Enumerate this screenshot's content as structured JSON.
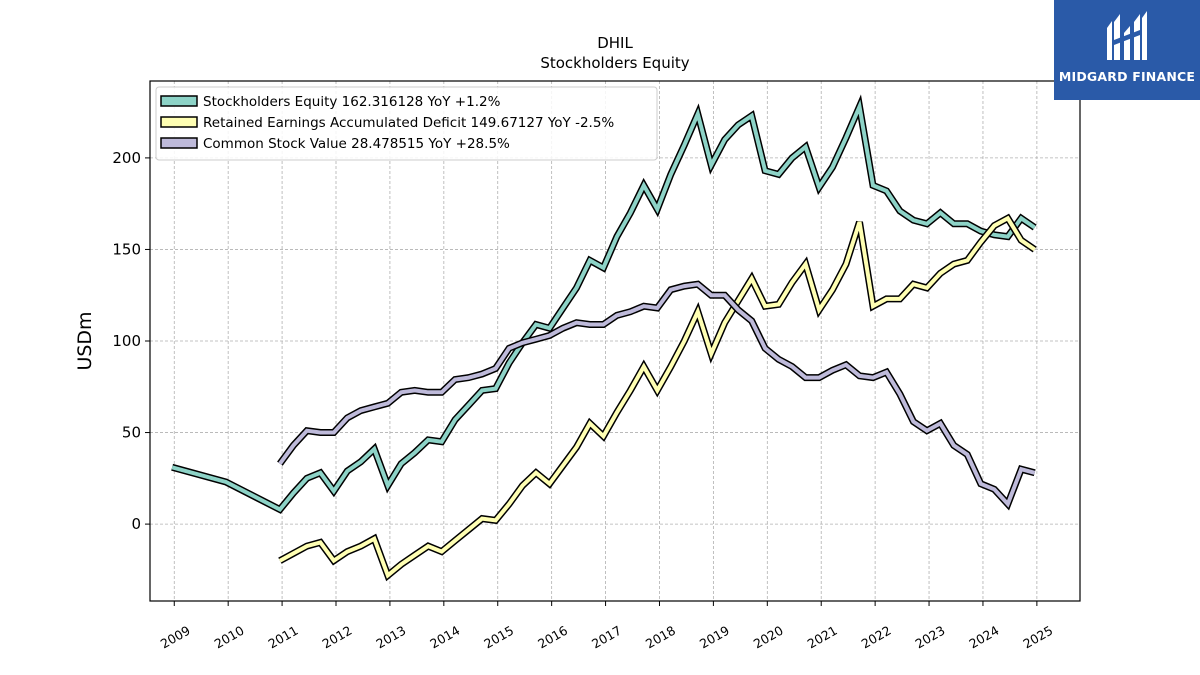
{
  "brand": {
    "logo_text": "MIDGARD FINANCE",
    "color": "#2a5aa8"
  },
  "chart_data": {
    "type": "line",
    "title": "DHIL",
    "subtitle": "Stockholders  Equity",
    "ylabel": "USDm",
    "xlabel": "",
    "xlim": [
      2008.55,
      2025.8
    ],
    "ylim": [
      -42,
      242
    ],
    "yticks": [
      0,
      50,
      100,
      150,
      200
    ],
    "xticks": [
      2009,
      2010,
      2011,
      2012,
      2013,
      2014,
      2015,
      2016,
      2017,
      2018,
      2019,
      2020,
      2021,
      2022,
      2023,
      2024,
      2025
    ],
    "grid": true,
    "legend_position": "upper-left",
    "series": [
      {
        "name": "Stockholders Equity  162.316128 YoY +1.2%",
        "color": "#8dd3c7",
        "points": [
          [
            2008.96,
            31
          ],
          [
            2009.96,
            23
          ],
          [
            2010.96,
            8
          ],
          [
            2011.21,
            17
          ],
          [
            2011.46,
            25
          ],
          [
            2011.71,
            28
          ],
          [
            2011.96,
            18
          ],
          [
            2012.21,
            29
          ],
          [
            2012.46,
            34
          ],
          [
            2012.71,
            41
          ],
          [
            2012.96,
            21
          ],
          [
            2013.21,
            33
          ],
          [
            2013.46,
            39
          ],
          [
            2013.71,
            46
          ],
          [
            2013.96,
            45
          ],
          [
            2014.21,
            57
          ],
          [
            2014.46,
            65
          ],
          [
            2014.71,
            73
          ],
          [
            2014.96,
            74
          ],
          [
            2015.21,
            88
          ],
          [
            2015.46,
            99
          ],
          [
            2015.71,
            109
          ],
          [
            2015.96,
            107
          ],
          [
            2016.21,
            118
          ],
          [
            2016.46,
            129
          ],
          [
            2016.71,
            144
          ],
          [
            2016.96,
            140
          ],
          [
            2017.21,
            157
          ],
          [
            2017.46,
            170
          ],
          [
            2017.71,
            185
          ],
          [
            2017.96,
            172
          ],
          [
            2018.21,
            191
          ],
          [
            2018.46,
            207
          ],
          [
            2018.71,
            224
          ],
          [
            2018.96,
            196
          ],
          [
            2019.21,
            210
          ],
          [
            2019.46,
            218
          ],
          [
            2019.71,
            223
          ],
          [
            2019.96,
            193
          ],
          [
            2020.21,
            191
          ],
          [
            2020.46,
            200
          ],
          [
            2020.71,
            206
          ],
          [
            2020.96,
            184
          ],
          [
            2021.21,
            195
          ],
          [
            2021.46,
            211
          ],
          [
            2021.71,
            228
          ],
          [
            2021.96,
            185
          ],
          [
            2022.21,
            182
          ],
          [
            2022.46,
            171
          ],
          [
            2022.71,
            166
          ],
          [
            2022.96,
            164
          ],
          [
            2023.21,
            170
          ],
          [
            2023.46,
            164
          ],
          [
            2023.71,
            164
          ],
          [
            2023.96,
            160
          ],
          [
            2024.21,
            158
          ],
          [
            2024.46,
            157
          ],
          [
            2024.71,
            167
          ],
          [
            2024.96,
            162
          ]
        ]
      },
      {
        "name": "Retained Earnings Accumulated Deficit  149.67127 YoY -2.5%",
        "color": "#ffffb3",
        "points": [
          [
            2010.96,
            -20
          ],
          [
            2011.21,
            -16
          ],
          [
            2011.46,
            -12
          ],
          [
            2011.71,
            -10
          ],
          [
            2011.96,
            -20
          ],
          [
            2012.21,
            -15
          ],
          [
            2012.46,
            -12
          ],
          [
            2012.71,
            -8
          ],
          [
            2012.96,
            -28
          ],
          [
            2013.21,
            -22
          ],
          [
            2013.46,
            -17
          ],
          [
            2013.71,
            -12
          ],
          [
            2013.96,
            -15
          ],
          [
            2014.21,
            -9
          ],
          [
            2014.46,
            -3
          ],
          [
            2014.71,
            3
          ],
          [
            2014.96,
            2
          ],
          [
            2015.21,
            11
          ],
          [
            2015.46,
            21
          ],
          [
            2015.71,
            28
          ],
          [
            2015.96,
            22
          ],
          [
            2016.21,
            32
          ],
          [
            2016.46,
            42
          ],
          [
            2016.71,
            55
          ],
          [
            2016.96,
            48
          ],
          [
            2017.21,
            61
          ],
          [
            2017.46,
            73
          ],
          [
            2017.71,
            86
          ],
          [
            2017.96,
            73
          ],
          [
            2018.21,
            86
          ],
          [
            2018.46,
            100
          ],
          [
            2018.71,
            116
          ],
          [
            2018.96,
            93
          ],
          [
            2019.21,
            110
          ],
          [
            2019.46,
            122
          ],
          [
            2019.71,
            134
          ],
          [
            2019.96,
            119
          ],
          [
            2020.21,
            120
          ],
          [
            2020.46,
            132
          ],
          [
            2020.71,
            142
          ],
          [
            2020.96,
            117
          ],
          [
            2021.21,
            128
          ],
          [
            2021.46,
            142
          ],
          [
            2021.71,
            165
          ],
          [
            2021.96,
            119
          ],
          [
            2022.21,
            123
          ],
          [
            2022.46,
            123
          ],
          [
            2022.71,
            131
          ],
          [
            2022.96,
            129
          ],
          [
            2023.21,
            137
          ],
          [
            2023.46,
            142
          ],
          [
            2023.71,
            144
          ],
          [
            2023.96,
            154
          ],
          [
            2024.21,
            163
          ],
          [
            2024.46,
            167
          ],
          [
            2024.71,
            155
          ],
          [
            2024.96,
            150
          ]
        ]
      },
      {
        "name": "Common Stock Value  28.478515 YoY +28.5%",
        "color": "#bebada",
        "points": [
          [
            2010.96,
            33
          ],
          [
            2011.21,
            43
          ],
          [
            2011.46,
            51
          ],
          [
            2011.71,
            50
          ],
          [
            2011.96,
            50
          ],
          [
            2012.21,
            58
          ],
          [
            2012.46,
            62
          ],
          [
            2012.71,
            64
          ],
          [
            2012.96,
            66
          ],
          [
            2013.21,
            72
          ],
          [
            2013.46,
            73
          ],
          [
            2013.71,
            72
          ],
          [
            2013.96,
            72
          ],
          [
            2014.21,
            79
          ],
          [
            2014.46,
            80
          ],
          [
            2014.71,
            82
          ],
          [
            2014.96,
            85
          ],
          [
            2015.21,
            96
          ],
          [
            2015.46,
            99
          ],
          [
            2015.71,
            101
          ],
          [
            2015.96,
            103
          ],
          [
            2016.21,
            107
          ],
          [
            2016.46,
            110
          ],
          [
            2016.71,
            109
          ],
          [
            2016.96,
            109
          ],
          [
            2017.21,
            114
          ],
          [
            2017.46,
            116
          ],
          [
            2017.71,
            119
          ],
          [
            2017.96,
            118
          ],
          [
            2018.21,
            128
          ],
          [
            2018.46,
            130
          ],
          [
            2018.71,
            131
          ],
          [
            2018.96,
            125
          ],
          [
            2019.21,
            125
          ],
          [
            2019.46,
            117
          ],
          [
            2019.71,
            111
          ],
          [
            2019.96,
            96
          ],
          [
            2020.21,
            90
          ],
          [
            2020.46,
            86
          ],
          [
            2020.71,
            80
          ],
          [
            2020.96,
            80
          ],
          [
            2021.21,
            84
          ],
          [
            2021.46,
            87
          ],
          [
            2021.71,
            81
          ],
          [
            2021.96,
            80
          ],
          [
            2022.21,
            83
          ],
          [
            2022.46,
            71
          ],
          [
            2022.71,
            56
          ],
          [
            2022.96,
            51
          ],
          [
            2023.21,
            55
          ],
          [
            2023.46,
            43
          ],
          [
            2023.71,
            38
          ],
          [
            2023.96,
            22
          ],
          [
            2024.21,
            19
          ],
          [
            2024.46,
            11
          ],
          [
            2024.71,
            30
          ],
          [
            2024.96,
            28
          ]
        ]
      }
    ]
  }
}
